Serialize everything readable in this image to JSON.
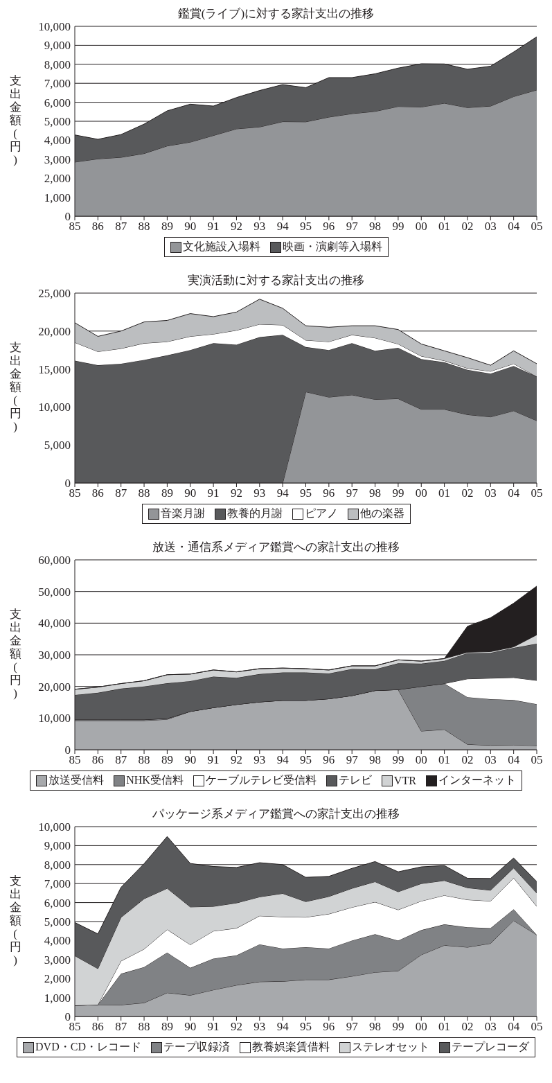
{
  "chart_data": [
    {
      "type": "area",
      "stacked": true,
      "title": "鑑賞(ライブ)に対する家計支出の推移",
      "ylabel": "支出金額(円)",
      "categories": [
        "85",
        "86",
        "87",
        "88",
        "89",
        "90",
        "91",
        "92",
        "93",
        "94",
        "95",
        "96",
        "97",
        "98",
        "99",
        "00",
        "01",
        "02",
        "03",
        "04",
        "05"
      ],
      "ylim": [
        0,
        10000
      ],
      "yticks": [
        {
          "value": 0,
          "label": "0"
        },
        {
          "value": 1000,
          "label": "1,000"
        },
        {
          "value": 2000,
          "label": "2,000"
        },
        {
          "value": 3000,
          "label": "3,000"
        },
        {
          "value": 4000,
          "label": "4,000"
        },
        {
          "value": 5000,
          "label": "5,000"
        },
        {
          "value": 6000,
          "label": "6,000"
        },
        {
          "value": 7000,
          "label": "7,000"
        },
        {
          "value": 8000,
          "label": "8,000"
        },
        {
          "value": 9000,
          "label": "9,000"
        },
        {
          "value": 10000,
          "label": "10,000"
        }
      ],
      "grid": "y",
      "legend": "bottom",
      "series": [
        {
          "name": "文化施設入場料",
          "color": "#939598",
          "values": [
            2850,
            3020,
            3100,
            3300,
            3700,
            3900,
            4250,
            4600,
            4700,
            4980,
            4970,
            5220,
            5400,
            5520,
            5780,
            5750,
            5950,
            5720,
            5800,
            6300,
            6650
          ]
        },
        {
          "name": "映画・演劇等入場料",
          "color": "#58595b",
          "values": [
            1430,
            1030,
            1200,
            1550,
            1850,
            2000,
            1550,
            1650,
            1920,
            1950,
            1800,
            2080,
            1900,
            1980,
            2020,
            2280,
            2070,
            2020,
            2100,
            2350,
            2800
          ]
        }
      ]
    },
    {
      "type": "area",
      "stacked": true,
      "title": "実演活動に対する家計支出の推移",
      "ylabel": "支出金額(円)",
      "categories": [
        "85",
        "86",
        "87",
        "88",
        "89",
        "90",
        "91",
        "92",
        "93",
        "94",
        "95",
        "96",
        "97",
        "98",
        "99",
        "00",
        "01",
        "02",
        "03",
        "04",
        "05"
      ],
      "ylim": [
        0,
        25000
      ],
      "yticks": [
        {
          "value": 0,
          "label": "0"
        },
        {
          "value": 5000,
          "label": "5,000"
        },
        {
          "value": 10000,
          "label": "10,000"
        },
        {
          "value": 15000,
          "label": "15,000"
        },
        {
          "value": 20000,
          "label": "20,000"
        },
        {
          "value": 25000,
          "label": "25,000"
        }
      ],
      "grid": "y",
      "legend": "bottom",
      "series": [
        {
          "name": "音楽月謝",
          "color": "#939598",
          "values": [
            0,
            0,
            0,
            0,
            0,
            0,
            0,
            0,
            0,
            0,
            12000,
            11300,
            11600,
            11000,
            11100,
            9700,
            9700,
            9000,
            8700,
            9500,
            8200
          ]
        },
        {
          "name": "教養的月謝",
          "color": "#58595b",
          "values": [
            16100,
            15500,
            15700,
            16200,
            16800,
            17500,
            18400,
            18200,
            19200,
            19500,
            5900,
            6200,
            6800,
            6400,
            6700,
            6600,
            6200,
            5900,
            5700,
            5900,
            5800
          ]
        },
        {
          "name": "ピアノ",
          "color": "#ffffff",
          "values": [
            2400,
            1800,
            2000,
            2200,
            1800,
            1800,
            1200,
            1900,
            1700,
            1300,
            900,
            1100,
            1100,
            1700,
            500,
            400,
            200,
            200,
            300,
            300,
            0
          ]
        },
        {
          "name": "他の楽器",
          "color": "#bcbec0",
          "values": [
            2600,
            2000,
            2300,
            2800,
            2800,
            3000,
            2300,
            2400,
            3300,
            2200,
            1900,
            1900,
            1200,
            1600,
            1900,
            1600,
            1300,
            1400,
            800,
            1700,
            1700
          ]
        }
      ]
    },
    {
      "type": "area",
      "stacked": true,
      "title": "放送・通信系メディア鑑賞への家計支出の推移",
      "ylabel": "支出金額(円)",
      "categories": [
        "85",
        "86",
        "87",
        "88",
        "89",
        "90",
        "91",
        "92",
        "93",
        "94",
        "95",
        "96",
        "97",
        "98",
        "99",
        "00",
        "01",
        "02",
        "03",
        "04",
        "05"
      ],
      "ylim": [
        0,
        60000
      ],
      "yticks": [
        {
          "value": 0,
          "label": "0"
        },
        {
          "value": 10000,
          "label": "10,000"
        },
        {
          "value": 20000,
          "label": "20,000"
        },
        {
          "value": 30000,
          "label": "30,000"
        },
        {
          "value": 40000,
          "label": "40,000"
        },
        {
          "value": 50000,
          "label": "50,000"
        },
        {
          "value": 60000,
          "label": "60,000"
        }
      ],
      "grid": "y",
      "legend": "bottom",
      "series": [
        {
          "name": "放送受信料",
          "color": "#a7a9ac",
          "values": [
            9200,
            9200,
            9200,
            9200,
            9600,
            12100,
            13300,
            14300,
            15100,
            15600,
            15600,
            16100,
            17100,
            18700,
            19000,
            5900,
            6400,
            1700,
            1400,
            1500,
            1300
          ]
        },
        {
          "name": "NHK受信料",
          "color": "#808285",
          "values": [
            300,
            300,
            300,
            300,
            300,
            0,
            0,
            0,
            0,
            0,
            0,
            0,
            0,
            0,
            0,
            14100,
            14500,
            14900,
            14600,
            14200,
            13100
          ]
        },
        {
          "name": "ケーブルテレビ受信料",
          "color": "#ffffff",
          "values": [
            0,
            0,
            0,
            0,
            0,
            0,
            0,
            0,
            0,
            0,
            0,
            0,
            0,
            0,
            0,
            0,
            0,
            5800,
            6600,
            7100,
            7500
          ]
        },
        {
          "name": "テレビ",
          "color": "#58595b",
          "values": [
            7800,
            8500,
            9800,
            10500,
            11100,
            9600,
            9800,
            8400,
            8800,
            8800,
            8800,
            8000,
            8400,
            6700,
            8300,
            7200,
            7200,
            8100,
            8000,
            9400,
            11600
          ]
        },
        {
          "name": "VTR",
          "color": "#d1d3d4",
          "values": [
            1800,
            1800,
            1600,
            1800,
            2700,
            2200,
            2100,
            1900,
            1700,
            1400,
            1200,
            1100,
            1000,
            1100,
            1100,
            800,
            700,
            300,
            400,
            300,
            2800
          ]
        },
        {
          "name": "インターネット",
          "color": "#231f20",
          "values": [
            0,
            0,
            0,
            0,
            0,
            0,
            0,
            0,
            0,
            0,
            0,
            0,
            0,
            0,
            0,
            0,
            0,
            8200,
            10700,
            13800,
            15400
          ]
        }
      ]
    },
    {
      "type": "area",
      "stacked": true,
      "title": "パッケージ系メディア鑑賞への家計支出の推移",
      "ylabel": "支出金額(円)",
      "categories": [
        "85",
        "86",
        "87",
        "88",
        "89",
        "90",
        "91",
        "92",
        "93",
        "94",
        "95",
        "96",
        "97",
        "98",
        "99",
        "00",
        "01",
        "02",
        "03",
        "04",
        "05"
      ],
      "ylim": [
        0,
        10000
      ],
      "yticks": [
        {
          "value": 0,
          "label": "0"
        },
        {
          "value": 1000,
          "label": "1,000"
        },
        {
          "value": 2000,
          "label": "2,000"
        },
        {
          "value": 3000,
          "label": "3,000"
        },
        {
          "value": 4000,
          "label": "4,000"
        },
        {
          "value": 5000,
          "label": "5,000"
        },
        {
          "value": 6000,
          "label": "6,000"
        },
        {
          "value": 7000,
          "label": "7,000"
        },
        {
          "value": 8000,
          "label": "8,000"
        },
        {
          "value": 9000,
          "label": "9,000"
        },
        {
          "value": 10000,
          "label": "10,000"
        }
      ],
      "grid": "y",
      "legend": "bottom",
      "series": [
        {
          "name": "DVD・CD・レコード",
          "color": "#a7a9ac",
          "values": [
            580,
            620,
            610,
            720,
            1250,
            1120,
            1400,
            1650,
            1830,
            1850,
            1940,
            1940,
            2120,
            2330,
            2400,
            3250,
            3750,
            3650,
            3850,
            5050,
            4300
          ]
        },
        {
          "name": "テープ収録済",
          "color": "#808285",
          "values": [
            0,
            0,
            1640,
            1880,
            2120,
            1440,
            1650,
            1570,
            1970,
            1730,
            1710,
            1640,
            1880,
            2000,
            1600,
            1300,
            1100,
            1050,
            800,
            600,
            0
          ]
        },
        {
          "name": "教養娯楽賃借料",
          "color": "#ffffff",
          "values": [
            0,
            0,
            670,
            950,
            1210,
            1220,
            1450,
            1430,
            1500,
            1670,
            1580,
            1820,
            1750,
            1700,
            1620,
            1530,
            1530,
            1450,
            1430,
            1650,
            1500
          ]
        },
        {
          "name": "ステレオセット",
          "color": "#d1d3d4",
          "values": [
            2620,
            1900,
            2300,
            2650,
            2170,
            1990,
            1300,
            1330,
            1000,
            1230,
            820,
            920,
            1000,
            1070,
            950,
            920,
            780,
            630,
            570,
            520,
            700
          ]
        },
        {
          "name": "テープレコーダ",
          "color": "#58595b",
          "values": [
            1750,
            1830,
            1580,
            1850,
            2730,
            2290,
            2100,
            1870,
            1800,
            1520,
            1280,
            1060,
            1050,
            1060,
            1050,
            880,
            790,
            500,
            620,
            530,
            600
          ]
        }
      ]
    }
  ]
}
